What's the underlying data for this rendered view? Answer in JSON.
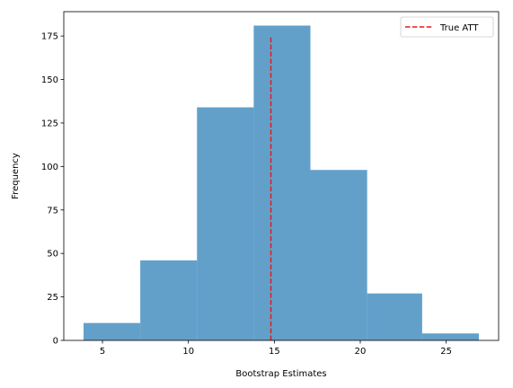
{
  "chart_data": {
    "type": "bar",
    "subtype": "histogram",
    "xlabel": "Bootstrap Estimates",
    "ylabel": "Frequency",
    "xlim": [
      2.75,
      28.05
    ],
    "ylim": [
      0,
      189
    ],
    "xticks": [
      5,
      10,
      15,
      20,
      25
    ],
    "yticks": [
      0,
      25,
      50,
      75,
      100,
      125,
      150,
      175
    ],
    "bins": [
      {
        "x0": 3.9,
        "x1": 7.2,
        "value": 10
      },
      {
        "x0": 7.2,
        "x1": 10.5,
        "value": 46
      },
      {
        "x0": 10.5,
        "x1": 13.8,
        "value": 134
      },
      {
        "x0": 13.8,
        "x1": 17.1,
        "value": 181
      },
      {
        "x0": 17.1,
        "x1": 20.4,
        "value": 98
      },
      {
        "x0": 20.4,
        "x1": 23.6,
        "value": 27
      },
      {
        "x0": 23.6,
        "x1": 26.9,
        "value": 4
      }
    ],
    "bar_color": "#1f77b4",
    "bar_opacity": 0.7,
    "reference_line": {
      "label": "True ATT",
      "x": 14.8,
      "y_range": [
        0,
        175
      ],
      "color": "#e41a1c",
      "style": "dashed"
    },
    "legend": {
      "position": "top-right",
      "entries": [
        "True ATT"
      ]
    },
    "grid": false
  }
}
